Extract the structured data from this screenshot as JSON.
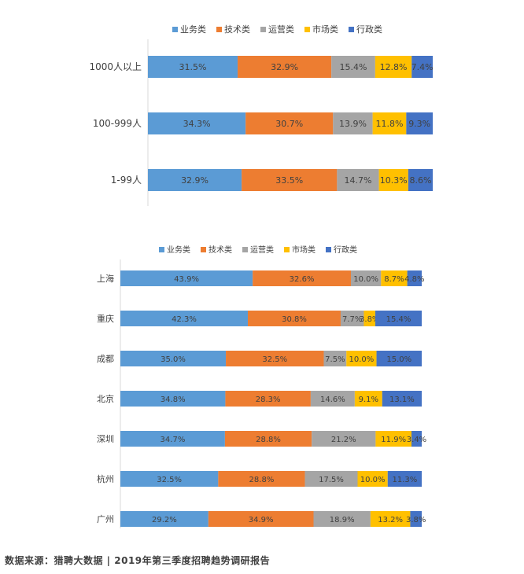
{
  "source_note": "数据来源：猎聘大数据 | 2019年第三季度招聘趋势调研报告",
  "colors": {
    "业务类": "#5B9BD5",
    "技术类": "#ED7D31",
    "运营类": "#A5A5A5",
    "市场类": "#FFC000",
    "行政类": "#4472C4"
  },
  "chart_data": [
    {
      "type": "bar",
      "orientation": "horizontal",
      "stacked": "percent",
      "legend_position": "top",
      "categories": [
        "1000人以上",
        "100-999人",
        "1-99人"
      ],
      "series": [
        {
          "name": "业务类",
          "color": "#5B9BD5",
          "values": [
            31.5,
            34.3,
            32.9
          ],
          "labels": [
            "31.5%",
            "34.3%",
            "32.9%"
          ]
        },
        {
          "name": "技术类",
          "color": "#ED7D31",
          "values": [
            32.9,
            30.7,
            33.5
          ],
          "labels": [
            "32.9%",
            "30.7%",
            "33.5%"
          ]
        },
        {
          "name": "运营类",
          "color": "#A5A5A5",
          "values": [
            15.4,
            13.9,
            14.7
          ],
          "labels": [
            "15.4%",
            "13.9%",
            "14.7%"
          ]
        },
        {
          "name": "市场类",
          "color": "#FFC000",
          "values": [
            12.8,
            11.8,
            10.3
          ],
          "labels": [
            "12.8%",
            "11.8%",
            "10.3%"
          ]
        },
        {
          "name": "行政类",
          "color": "#4472C4",
          "values": [
            7.4,
            9.3,
            8.6
          ],
          "labels": [
            "7.4%",
            "9.3%",
            "8.6%"
          ]
        }
      ]
    },
    {
      "type": "bar",
      "orientation": "horizontal",
      "stacked": "percent",
      "legend_position": "top",
      "categories": [
        "上海",
        "重庆",
        "成都",
        "北京",
        "深圳",
        "杭州",
        "广州"
      ],
      "series": [
        {
          "name": "业务类",
          "color": "#5B9BD5",
          "values": [
            43.9,
            42.3,
            35.0,
            34.8,
            34.7,
            32.5,
            29.2
          ],
          "labels": [
            "43.9%",
            "42.3%",
            "35.0%",
            "34.8%",
            "34.7%",
            "32.5%",
            "29.2%"
          ]
        },
        {
          "name": "技术类",
          "color": "#ED7D31",
          "values": [
            32.6,
            30.8,
            32.5,
            28.3,
            28.8,
            28.8,
            34.9
          ],
          "labels": [
            "32.6%",
            "30.8%",
            "32.5%",
            "28.3%",
            "28.8%",
            "28.8%",
            "34.9%"
          ]
        },
        {
          "name": "运营类",
          "color": "#A5A5A5",
          "values": [
            10.0,
            7.7,
            7.5,
            14.6,
            21.2,
            17.5,
            18.9
          ],
          "labels": [
            "10.0%",
            "7.7%",
            "7.5%",
            "14.6%",
            "21.2%",
            "17.5%",
            "18.9%"
          ]
        },
        {
          "name": "市场类",
          "color": "#FFC000",
          "values": [
            8.7,
            3.8,
            10.0,
            9.1,
            11.9,
            10.0,
            13.2
          ],
          "labels": [
            "8.7%",
            "3.8%",
            "10.0%",
            "9.1%",
            "11.9%",
            "10.0%",
            "13.2%"
          ]
        },
        {
          "name": "行政类",
          "color": "#4472C4",
          "values": [
            4.8,
            15.4,
            15.0,
            13.1,
            3.4,
            11.3,
            3.8
          ],
          "labels": [
            "4.8%",
            "15.4%",
            "15.0%",
            "13.1%",
            "3.4%",
            "11.3%",
            "3.8%"
          ]
        }
      ]
    }
  ]
}
